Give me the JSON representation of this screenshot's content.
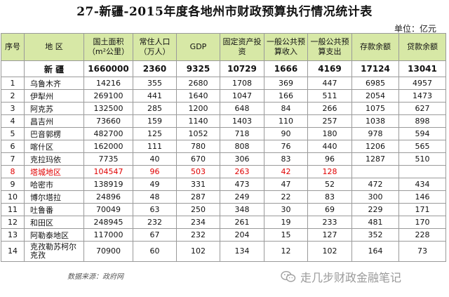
{
  "title": "27-新疆-2015年度各地州市财政预算执行情况统计表",
  "unit": "单位：亿元",
  "headers": [
    "序号",
    "地  区",
    "国土面积（m²公里）",
    "常住人口（万人）",
    "GDP",
    "固定资产投资",
    "一般公共预算收入",
    "一般公共预算支出",
    "存款余额",
    "贷款余额"
  ],
  "total": {
    "name": "新  疆",
    "area": "1660000",
    "pop": "2360",
    "gdp": "9325",
    "fixed": "10729",
    "income": "1666",
    "expense": "4169",
    "deposit": "17124",
    "loan": "13041"
  },
  "rows": [
    {
      "no": "1",
      "name": "乌鲁木齐",
      "area": "14216",
      "pop": "355",
      "gdp": "2680",
      "fixed": "1708",
      "income": "369",
      "expense": "447",
      "deposit": "6985",
      "loan": "4957"
    },
    {
      "no": "2",
      "name": "伊犁州",
      "area": "269100",
      "pop": "441",
      "gdp": "1640",
      "fixed": "1047",
      "income": "166",
      "expense": "511",
      "deposit": "2054",
      "loan": "1473"
    },
    {
      "no": "3",
      "name": "阿克苏",
      "area": "132500",
      "pop": "285",
      "gdp": "1200",
      "fixed": "648",
      "income": "84",
      "expense": "266",
      "deposit": "1075",
      "loan": "627"
    },
    {
      "no": "4",
      "name": "昌吉州",
      "area": "73660",
      "pop": "159",
      "gdp": "1140",
      "fixed": "1403",
      "income": "110",
      "expense": "257",
      "deposit": "1038",
      "loan": "898"
    },
    {
      "no": "5",
      "name": "巴音郭楞",
      "area": "482700",
      "pop": "125",
      "gdp": "1052",
      "fixed": "718",
      "income": "90",
      "expense": "180",
      "deposit": "978",
      "loan": "594"
    },
    {
      "no": "6",
      "name": "喀什区",
      "area": "162000",
      "pop": "111",
      "gdp": "780",
      "fixed": "808",
      "income": "76",
      "expense": "440",
      "deposit": "1206",
      "loan": "565"
    },
    {
      "no": "7",
      "name": "克拉玛依",
      "area": "7735",
      "pop": "40",
      "gdp": "670",
      "fixed": "306",
      "income": "83",
      "expense": "96",
      "deposit": "1287",
      "loan": "510"
    },
    {
      "no": "8",
      "name": "塔城地区",
      "area": "104547",
      "pop": "96",
      "gdp": "503",
      "fixed": "263",
      "income": "42",
      "expense": "128",
      "deposit": "",
      "loan": ""
    },
    {
      "no": "9",
      "name": "哈密市",
      "area": "138919",
      "pop": "49",
      "gdp": "331",
      "fixed": "473",
      "income": "47",
      "expense": "52",
      "deposit": "472",
      "loan": "434"
    },
    {
      "no": "10",
      "name": "博尔塔拉",
      "area": "24896",
      "pop": "48",
      "gdp": "287",
      "fixed": "249",
      "income": "22",
      "expense": "83",
      "deposit": "300",
      "loan": "146"
    },
    {
      "no": "11",
      "name": "吐鲁番",
      "area": "70049",
      "pop": "63",
      "gdp": "250",
      "fixed": "348",
      "income": "30",
      "expense": "69",
      "deposit": "229",
      "loan": "171"
    },
    {
      "no": "12",
      "name": "和田区",
      "area": "248945",
      "pop": "232",
      "gdp": "234",
      "fixed": "261",
      "income": "19",
      "expense": "233",
      "deposit": "481",
      "loan": "170"
    },
    {
      "no": "13",
      "name": "阿勒泰地区",
      "area": "117000",
      "pop": "67",
      "gdp": "232",
      "fixed": "204",
      "income": "15",
      "expense": "127",
      "deposit": "352",
      "loan": "228"
    },
    {
      "no": "14",
      "name": "克孜勒苏柯尔克孜",
      "area": "70900",
      "pop": "60",
      "gdp": "102",
      "fixed": "134",
      "income": "12",
      "expense": "102",
      "deposit": "164",
      "loan": "73"
    }
  ],
  "highlight_color": "#e00000",
  "header_bg": "#d7e8a6",
  "source": "数据来源：政府网",
  "brand": "走几步财政金融笔记",
  "brand_icon": "wechat-icon"
}
